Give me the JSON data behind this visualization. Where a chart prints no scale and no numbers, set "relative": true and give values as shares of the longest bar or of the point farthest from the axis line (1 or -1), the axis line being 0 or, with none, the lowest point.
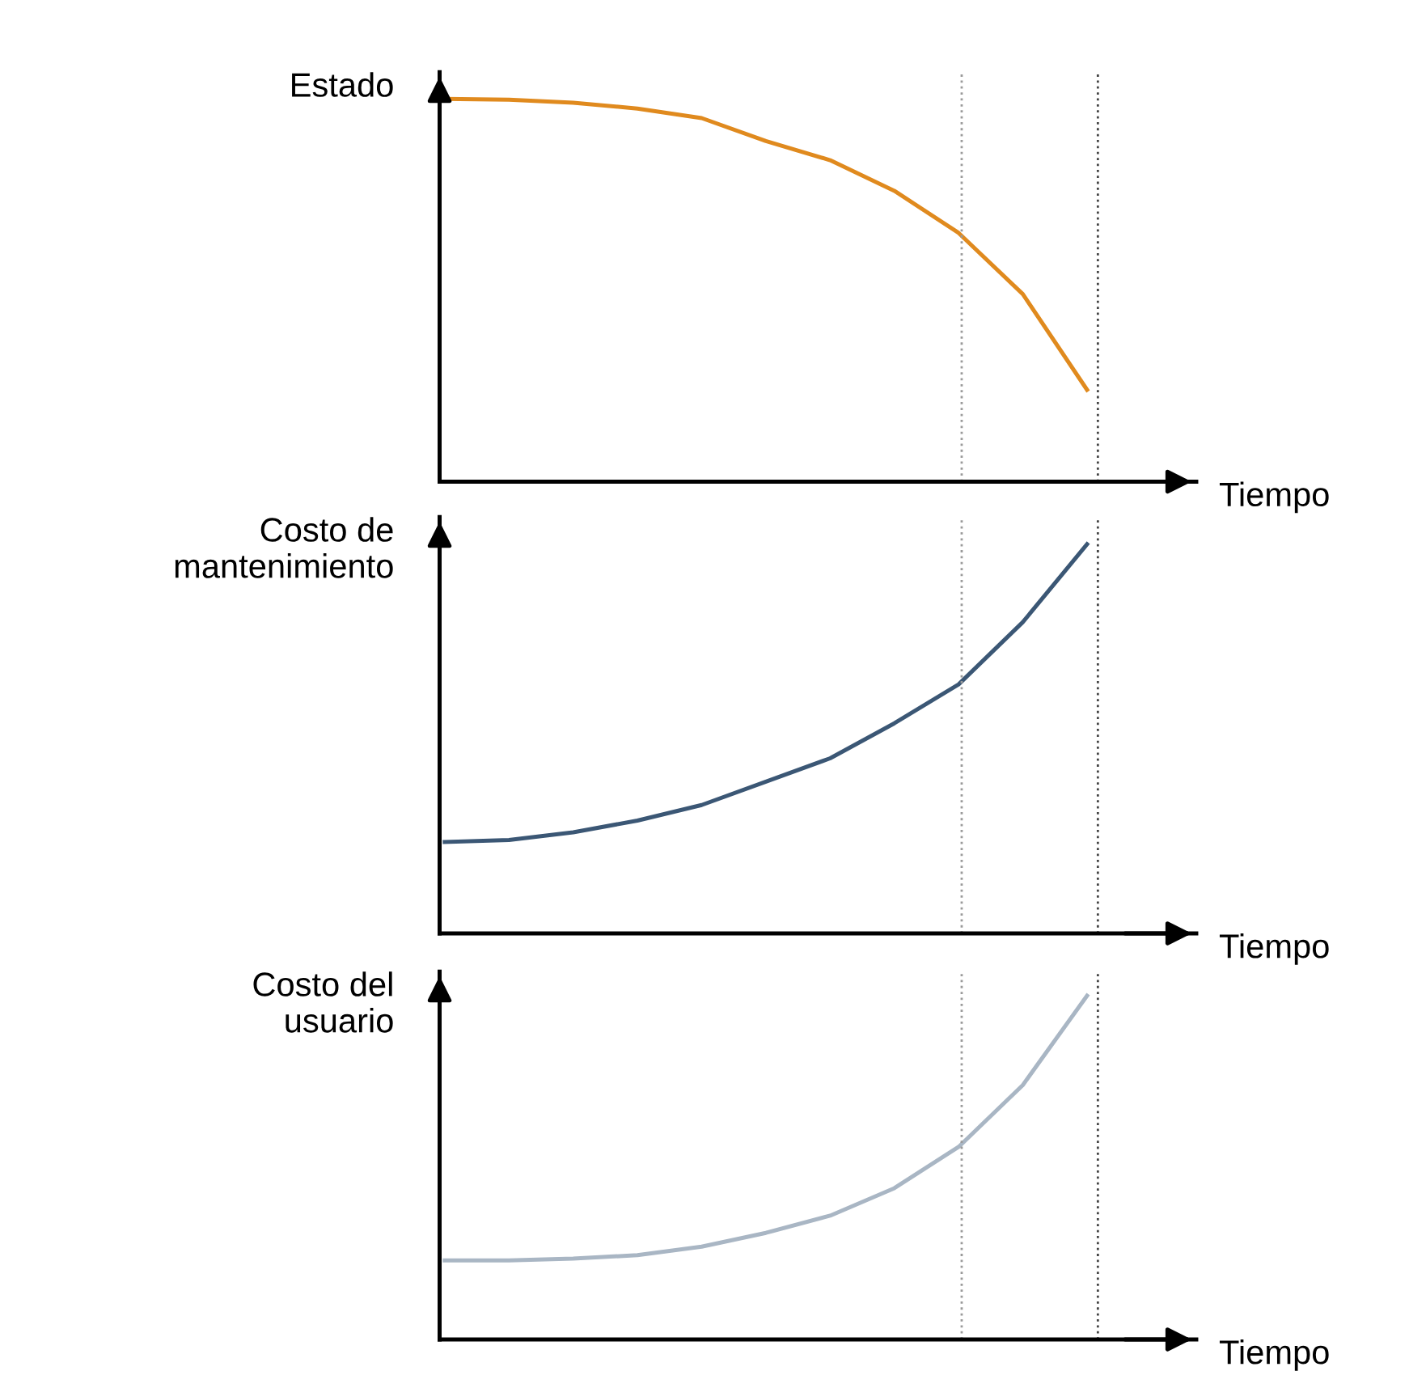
{
  "chart_data": [
    {
      "type": "line",
      "relative": true,
      "ylabel": "Estado",
      "xlabel": "Tiempo",
      "categories": [
        null,
        null,
        null,
        null,
        null,
        null,
        null,
        null,
        null,
        null,
        null
      ],
      "series": [
        {
          "color": "#e08a1e",
          "values": [
            1.0,
            0.998,
            0.99,
            0.975,
            0.95,
            0.89,
            0.84,
            0.76,
            0.65,
            0.49,
            0.24
          ]
        }
      ],
      "legend": false,
      "tick_labels": false,
      "marker": "none",
      "line_style": "solid"
    },
    {
      "type": "line",
      "relative": true,
      "ylabel": "Costo de\nmantenimiento",
      "xlabel": "Tiempo",
      "categories": [
        null,
        null,
        null,
        null,
        null,
        null,
        null,
        null,
        null,
        null,
        null
      ],
      "series": [
        {
          "color": "#3b5775",
          "values": [
            0.235,
            0.24,
            0.26,
            0.29,
            0.33,
            0.39,
            0.45,
            0.54,
            0.64,
            0.8,
            1.0
          ]
        }
      ],
      "legend": false,
      "tick_labels": false,
      "marker": "none",
      "line_style": "solid"
    },
    {
      "type": "line",
      "relative": true,
      "ylabel": "Costo del\nusuario",
      "xlabel": "Tiempo",
      "categories": [
        null,
        null,
        null,
        null,
        null,
        null,
        null,
        null,
        null,
        null,
        null
      ],
      "series": [
        {
          "color": "#a9b6c4",
          "values": [
            0.23,
            0.23,
            0.235,
            0.245,
            0.27,
            0.31,
            0.36,
            0.44,
            0.56,
            0.74,
            1.0
          ]
        }
      ],
      "legend": false,
      "tick_labels": false,
      "marker": "none",
      "line_style": "solid"
    }
  ]
}
